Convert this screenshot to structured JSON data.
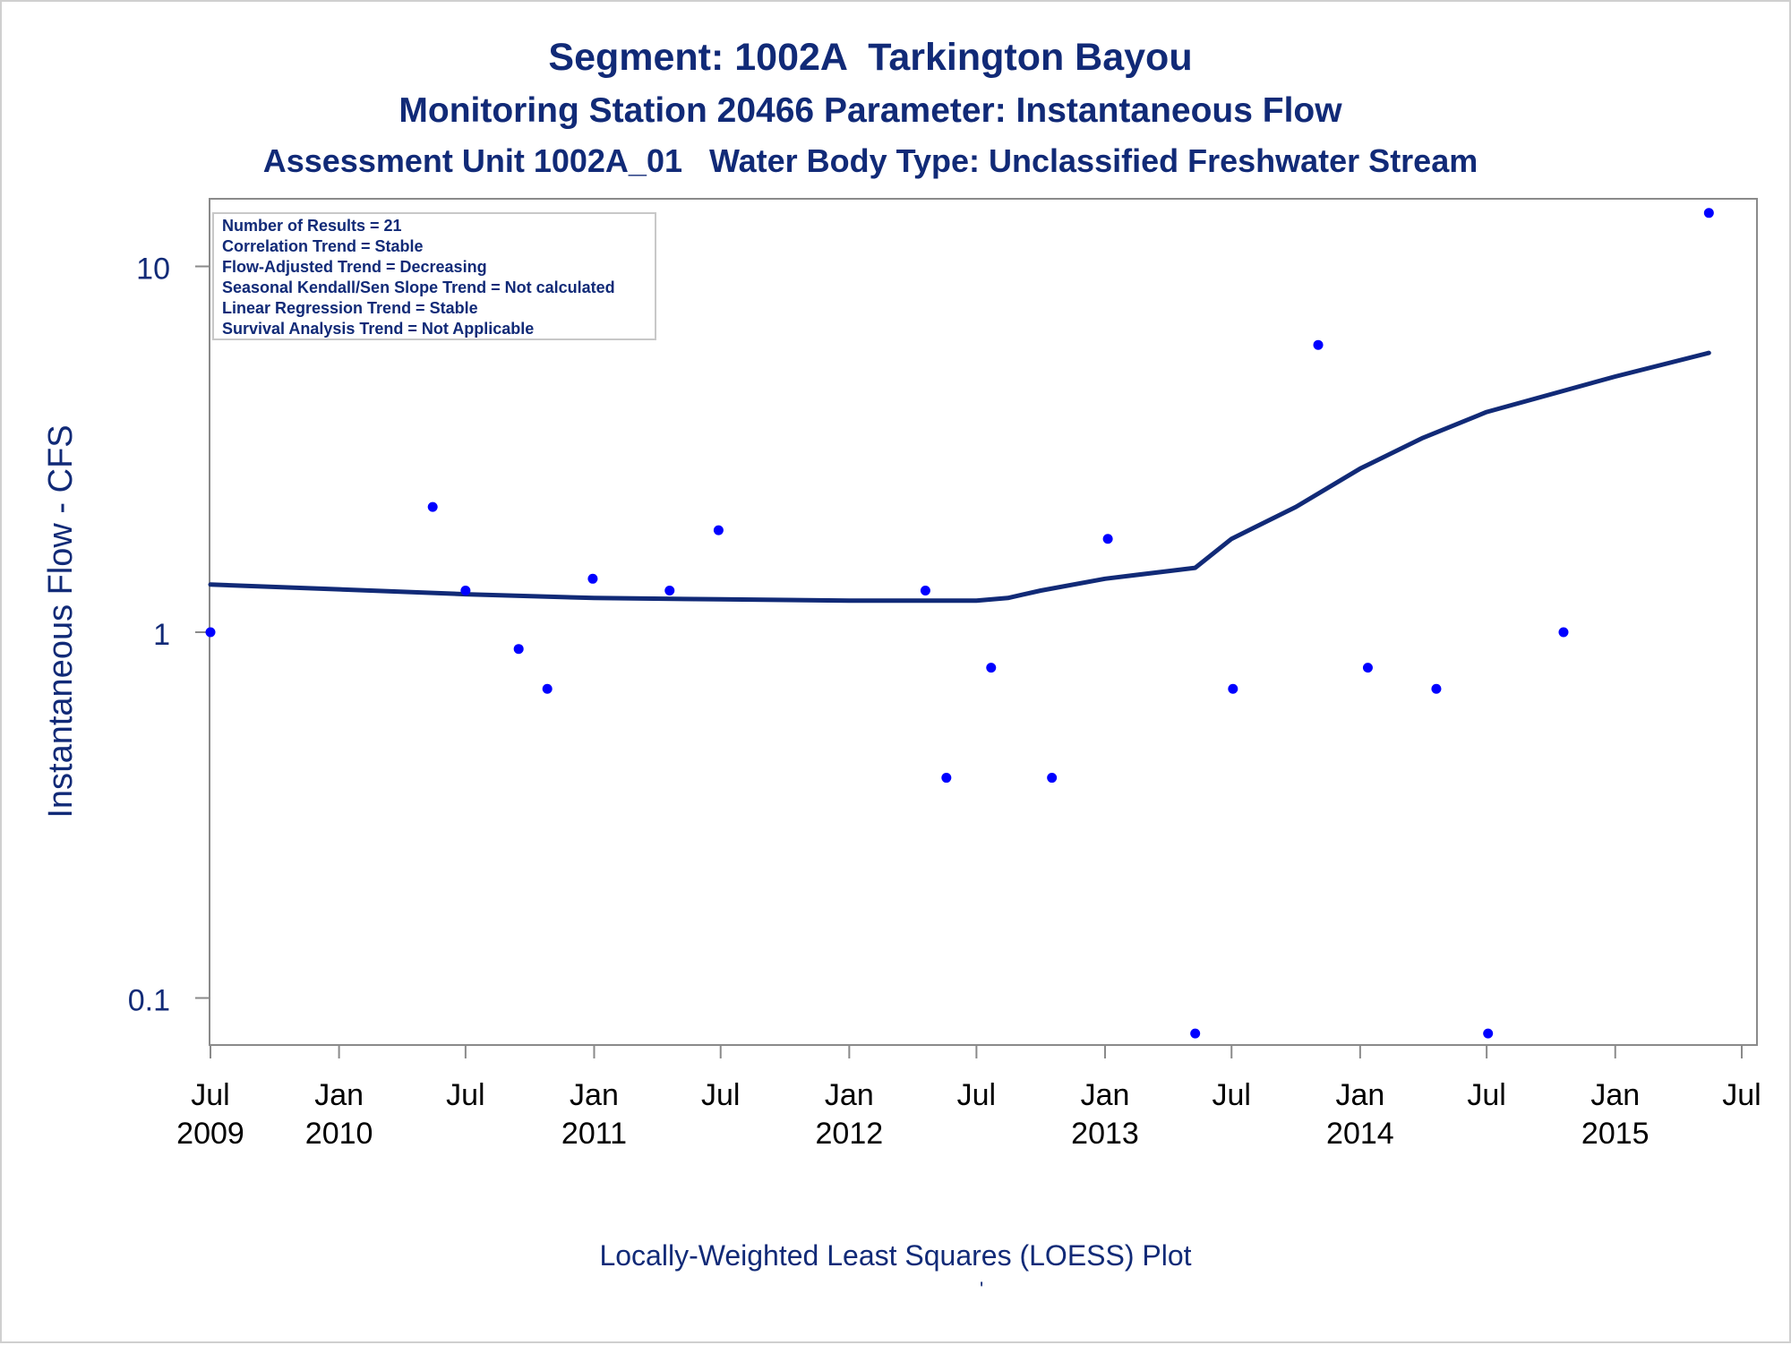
{
  "chart_data": {
    "type": "scatter",
    "title": "Segment: 1002A  Tarkington Bayou",
    "subtitle": "Monitoring Station 20466 Parameter: Instantaneous Flow",
    "subtitle2": "Assessment Unit 1002A_01   Water Body Type: Unclassified Freshwater Stream",
    "ylabel": "Instantaneous Flow - CFS",
    "xlabel": "",
    "yscale": "log",
    "ylim": [
      0.075,
      15
    ],
    "xlim": [
      "2009-07-01",
      "2015-07-10"
    ],
    "grid": false,
    "y_ticks": [
      {
        "value": 0.1,
        "label": "0.1"
      },
      {
        "value": 1,
        "label": "1"
      },
      {
        "value": 10,
        "label": "10"
      }
    ],
    "x_ticks": [
      {
        "date": "2009-07-01",
        "line1": "Jul",
        "line2": "2009"
      },
      {
        "date": "2010-01-01",
        "line1": "Jan",
        "line2": "2010"
      },
      {
        "date": "2010-07-01",
        "line1": "Jul",
        "line2": ""
      },
      {
        "date": "2011-01-01",
        "line1": "Jan",
        "line2": "2011"
      },
      {
        "date": "2011-07-01",
        "line1": "Jul",
        "line2": ""
      },
      {
        "date": "2012-01-01",
        "line1": "Jan",
        "line2": "2012"
      },
      {
        "date": "2012-07-01",
        "line1": "Jul",
        "line2": ""
      },
      {
        "date": "2013-01-01",
        "line1": "Jan",
        "line2": "2013"
      },
      {
        "date": "2013-07-01",
        "line1": "Jul",
        "line2": ""
      },
      {
        "date": "2014-01-01",
        "line1": "Jan",
        "line2": "2014"
      },
      {
        "date": "2014-07-01",
        "line1": "Jul",
        "line2": ""
      },
      {
        "date": "2015-01-01",
        "line1": "Jan",
        "line2": "2015"
      },
      {
        "date": "2015-07-01",
        "line1": "Jul",
        "line2": ""
      }
    ],
    "series": [
      {
        "kind": "points",
        "color": "#0000ff",
        "points": [
          {
            "x": "2009-07-01",
            "y": 1.0
          },
          {
            "x": "2010-05-15",
            "y": 2.2
          },
          {
            "x": "2010-07-01",
            "y": 1.3
          },
          {
            "x": "2010-09-15",
            "y": 0.9
          },
          {
            "x": "2010-10-26",
            "y": 0.7
          },
          {
            "x": "2010-12-30",
            "y": 1.4
          },
          {
            "x": "2011-04-19",
            "y": 1.3
          },
          {
            "x": "2011-06-28",
            "y": 1.9
          },
          {
            "x": "2012-04-19",
            "y": 1.3
          },
          {
            "x": "2012-05-19",
            "y": 0.4
          },
          {
            "x": "2012-07-22",
            "y": 0.8
          },
          {
            "x": "2012-10-17",
            "y": 0.4
          },
          {
            "x": "2013-01-05",
            "y": 1.8
          },
          {
            "x": "2013-05-10",
            "y": 0.08
          },
          {
            "x": "2013-07-03",
            "y": 0.7
          },
          {
            "x": "2013-11-02",
            "y": 6.1
          },
          {
            "x": "2014-01-12",
            "y": 0.8
          },
          {
            "x": "2014-04-20",
            "y": 0.7
          },
          {
            "x": "2014-07-03",
            "y": 0.08
          },
          {
            "x": "2014-10-19",
            "y": 1.0
          },
          {
            "x": "2015-05-15",
            "y": 14.0
          }
        ]
      },
      {
        "kind": "loess-line",
        "color": "#112a77",
        "points": [
          {
            "x": "2009-07-01",
            "y": 1.35
          },
          {
            "x": "2010-01-01",
            "y": 1.31
          },
          {
            "x": "2010-07-01",
            "y": 1.27
          },
          {
            "x": "2011-01-01",
            "y": 1.24
          },
          {
            "x": "2011-07-01",
            "y": 1.23
          },
          {
            "x": "2012-01-01",
            "y": 1.22
          },
          {
            "x": "2012-07-01",
            "y": 1.22
          },
          {
            "x": "2012-08-15",
            "y": 1.24
          },
          {
            "x": "2012-10-01",
            "y": 1.3
          },
          {
            "x": "2013-01-01",
            "y": 1.4
          },
          {
            "x": "2013-05-10",
            "y": 1.5
          },
          {
            "x": "2013-07-01",
            "y": 1.8
          },
          {
            "x": "2013-10-01",
            "y": 2.2
          },
          {
            "x": "2014-01-01",
            "y": 2.8
          },
          {
            "x": "2014-04-01",
            "y": 3.4
          },
          {
            "x": "2014-07-01",
            "y": 4.0
          },
          {
            "x": "2015-01-01",
            "y": 5.0
          },
          {
            "x": "2015-05-15",
            "y": 5.8
          }
        ]
      }
    ],
    "annotations": [
      "Number of Results = 21",
      "Correlation Trend = Stable",
      "Flow-Adjusted Trend = Decreasing",
      "Seasonal Kendall/Sen Slope Trend = Not calculated",
      "Linear Regression Trend = Stable",
      "Survival Analysis Trend = Not Applicable"
    ],
    "footnote": "Locally-Weighted Least Squares (LOESS) Plot",
    "footnote_mark": "'",
    "colors": {
      "text": "#112a77",
      "axis": "#808080",
      "points": "#0000ff",
      "loess": "#112a77",
      "tick_labels": "#000000"
    }
  }
}
